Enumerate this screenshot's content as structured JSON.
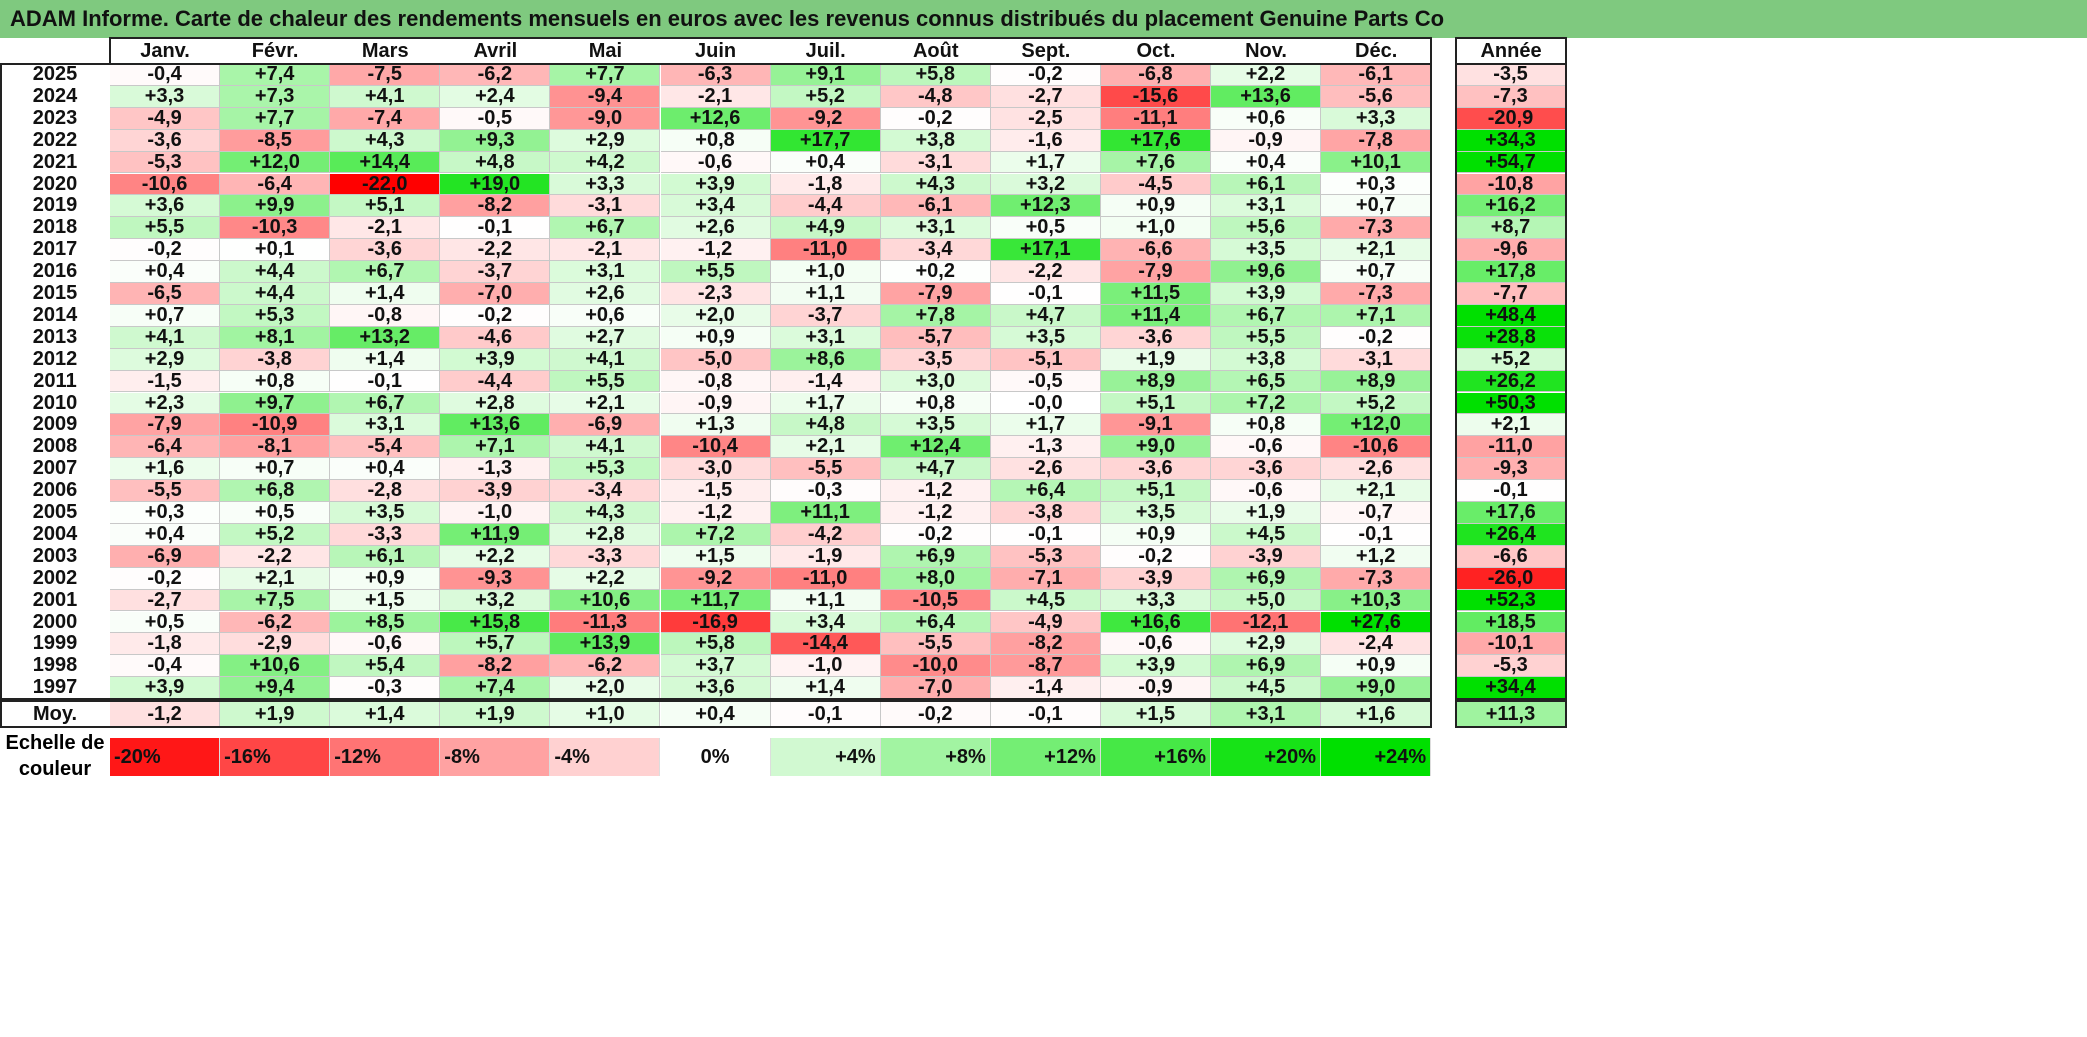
{
  "title": "ADAM Informe. Carte de chaleur des rendements mensuels en euros avec les revenus connus distribués du placement Genuine Parts Co",
  "chart_data": {
    "type": "heatmap",
    "title": "ADAM Informe. Carte de chaleur des rendements mensuels en euros avec les revenus connus distribués du placement Genuine Parts Co",
    "columns": [
      "Janv.",
      "Févr.",
      "Mars",
      "Avril",
      "Mai",
      "Juin",
      "Juil.",
      "Août",
      "Sept.",
      "Oct.",
      "Nov.",
      "Déc."
    ],
    "year_column_label": "Année",
    "rows": [
      {
        "year": "2025",
        "values": [
          "-0,4",
          "+7,4",
          "-7,5",
          "-6,2",
          "+7,7",
          "-6,3",
          "+9,1",
          "+5,8",
          "-0,2",
          "-6,8",
          "+2,2",
          "-6,1"
        ],
        "annual": "-3,5"
      },
      {
        "year": "2024",
        "values": [
          "+3,3",
          "+7,3",
          "+4,1",
          "+2,4",
          "-9,4",
          "-2,1",
          "+5,2",
          "-4,8",
          "-2,7",
          "-15,6",
          "+13,6",
          "-5,6"
        ],
        "annual": "-7,3"
      },
      {
        "year": "2023",
        "values": [
          "-4,9",
          "+7,7",
          "-7,4",
          "-0,5",
          "-9,0",
          "+12,6",
          "-9,2",
          "-0,2",
          "-2,5",
          "-11,1",
          "+0,6",
          "+3,3"
        ],
        "annual": "-20,9"
      },
      {
        "year": "2022",
        "values": [
          "-3,6",
          "-8,5",
          "+4,3",
          "+9,3",
          "+2,9",
          "+0,8",
          "+17,7",
          "+3,8",
          "-1,6",
          "+17,6",
          "-0,9",
          "-7,8"
        ],
        "annual": "+34,3"
      },
      {
        "year": "2021",
        "values": [
          "-5,3",
          "+12,0",
          "+14,4",
          "+4,8",
          "+4,2",
          "-0,6",
          "+0,4",
          "-3,1",
          "+1,7",
          "+7,6",
          "+0,4",
          "+10,1"
        ],
        "annual": "+54,7"
      },
      {
        "year": "2020",
        "values": [
          "-10,6",
          "-6,4",
          "-22,0",
          "+19,0",
          "+3,3",
          "+3,9",
          "-1,8",
          "+4,3",
          "+3,2",
          "-4,5",
          "+6,1",
          "+0,3"
        ],
        "annual": "-10,8"
      },
      {
        "year": "2019",
        "values": [
          "+3,6",
          "+9,9",
          "+5,1",
          "-8,2",
          "-3,1",
          "+3,4",
          "-4,4",
          "-6,1",
          "+12,3",
          "+0,9",
          "+3,1",
          "+0,7"
        ],
        "annual": "+16,2"
      },
      {
        "year": "2018",
        "values": [
          "+5,5",
          "-10,3",
          "-2,1",
          "-0,1",
          "+6,7",
          "+2,6",
          "+4,9",
          "+3,1",
          "+0,5",
          "+1,0",
          "+5,6",
          "-7,3"
        ],
        "annual": "+8,7"
      },
      {
        "year": "2017",
        "values": [
          "-0,2",
          "+0,1",
          "-3,6",
          "-2,2",
          "-2,1",
          "-1,2",
          "-11,0",
          "-3,4",
          "+17,1",
          "-6,6",
          "+3,5",
          "+2,1"
        ],
        "annual": "-9,6"
      },
      {
        "year": "2016",
        "values": [
          "+0,4",
          "+4,4",
          "+6,7",
          "-3,7",
          "+3,1",
          "+5,5",
          "+1,0",
          "+0,2",
          "-2,2",
          "-7,9",
          "+9,6",
          "+0,7"
        ],
        "annual": "+17,8"
      },
      {
        "year": "2015",
        "values": [
          "-6,5",
          "+4,4",
          "+1,4",
          "-7,0",
          "+2,6",
          "-2,3",
          "+1,1",
          "-7,9",
          "-0,1",
          "+11,5",
          "+3,9",
          "-7,3"
        ],
        "annual": "-7,7"
      },
      {
        "year": "2014",
        "values": [
          "+0,7",
          "+5,3",
          "-0,8",
          "-0,2",
          "+0,6",
          "+2,0",
          "-3,7",
          "+7,8",
          "+4,7",
          "+11,4",
          "+6,7",
          "+7,1"
        ],
        "annual": "+48,4"
      },
      {
        "year": "2013",
        "values": [
          "+4,1",
          "+8,1",
          "+13,2",
          "-4,6",
          "+2,7",
          "+0,9",
          "+3,1",
          "-5,7",
          "+3,5",
          "-3,6",
          "+5,5",
          "-0,2"
        ],
        "annual": "+28,8"
      },
      {
        "year": "2012",
        "values": [
          "+2,9",
          "-3,8",
          "+1,4",
          "+3,9",
          "+4,1",
          "-5,0",
          "+8,6",
          "-3,5",
          "-5,1",
          "+1,9",
          "+3,8",
          "-3,1"
        ],
        "annual": "+5,2"
      },
      {
        "year": "2011",
        "values": [
          "-1,5",
          "+0,8",
          "-0,1",
          "-4,4",
          "+5,5",
          "-0,8",
          "-1,4",
          "+3,0",
          "-0,5",
          "+8,9",
          "+6,5",
          "+8,9"
        ],
        "annual": "+26,2"
      },
      {
        "year": "2010",
        "values": [
          "+2,3",
          "+9,7",
          "+6,7",
          "+2,8",
          "+2,1",
          "-0,9",
          "+1,7",
          "+0,8",
          "-0,0",
          "+5,1",
          "+7,2",
          "+5,2"
        ],
        "annual": "+50,3"
      },
      {
        "year": "2009",
        "values": [
          "-7,9",
          "-10,9",
          "+3,1",
          "+13,6",
          "-6,9",
          "+1,3",
          "+4,8",
          "+3,5",
          "+1,7",
          "-9,1",
          "+0,8",
          "+12,0"
        ],
        "annual": "+2,1"
      },
      {
        "year": "2008",
        "values": [
          "-6,4",
          "-8,1",
          "-5,4",
          "+7,1",
          "+4,1",
          "-10,4",
          "+2,1",
          "+12,4",
          "-1,3",
          "+9,0",
          "-0,6",
          "-10,6"
        ],
        "annual": "-11,0"
      },
      {
        "year": "2007",
        "values": [
          "+1,6",
          "+0,7",
          "+0,4",
          "-1,3",
          "+5,3",
          "-3,0",
          "-5,5",
          "+4,7",
          "-2,6",
          "-3,6",
          "-3,6",
          "-2,6"
        ],
        "annual": "-9,3"
      },
      {
        "year": "2006",
        "values": [
          "-5,5",
          "+6,8",
          "-2,8",
          "-3,9",
          "-3,4",
          "-1,5",
          "-0,3",
          "-1,2",
          "+6,4",
          "+5,1",
          "-0,6",
          "+2,1"
        ],
        "annual": "-0,1"
      },
      {
        "year": "2005",
        "values": [
          "+0,3",
          "+0,5",
          "+3,5",
          "-1,0",
          "+4,3",
          "-1,2",
          "+11,1",
          "-1,2",
          "-3,8",
          "+3,5",
          "+1,9",
          "-0,7"
        ],
        "annual": "+17,6"
      },
      {
        "year": "2004",
        "values": [
          "+0,4",
          "+5,2",
          "-3,3",
          "+11,9",
          "+2,8",
          "+7,2",
          "-4,2",
          "-0,2",
          "-0,1",
          "+0,9",
          "+4,5",
          "-0,1"
        ],
        "annual": "+26,4"
      },
      {
        "year": "2003",
        "values": [
          "-6,9",
          "-2,2",
          "+6,1",
          "+2,2",
          "-3,3",
          "+1,5",
          "-1,9",
          "+6,9",
          "-5,3",
          "-0,2",
          "-3,9",
          "+1,2"
        ],
        "annual": "-6,6"
      },
      {
        "year": "2002",
        "values": [
          "-0,2",
          "+2,1",
          "+0,9",
          "-9,3",
          "+2,2",
          "-9,2",
          "-11,0",
          "+8,0",
          "-7,1",
          "-3,9",
          "+6,9",
          "-7,3"
        ],
        "annual": "-26,0"
      },
      {
        "year": "2001",
        "values": [
          "-2,7",
          "+7,5",
          "+1,5",
          "+3,2",
          "+10,6",
          "+11,7",
          "+1,1",
          "-10,5",
          "+4,5",
          "+3,3",
          "+5,0",
          "+10,3"
        ],
        "annual": "+52,3"
      },
      {
        "year": "2000",
        "values": [
          "+0,5",
          "-6,2",
          "+8,5",
          "+15,8",
          "-11,3",
          "-16,9",
          "+3,4",
          "+6,4",
          "-4,9",
          "+16,6",
          "-12,1",
          "+27,6"
        ],
        "annual": "+18,5"
      },
      {
        "year": "1999",
        "values": [
          "-1,8",
          "-2,9",
          "-0,6",
          "+5,7",
          "+13,9",
          "+5,8",
          "-14,4",
          "-5,5",
          "-8,2",
          "-0,6",
          "+2,9",
          "-2,4"
        ],
        "annual": "-10,1"
      },
      {
        "year": "1998",
        "values": [
          "-0,4",
          "+10,6",
          "+5,4",
          "-8,2",
          "-6,2",
          "+3,7",
          "-1,0",
          "-10,0",
          "-8,7",
          "+3,9",
          "+6,9",
          "+0,9"
        ],
        "annual": "-5,3"
      },
      {
        "year": "1997",
        "values": [
          "+3,9",
          "+9,4",
          "-0,3",
          "+7,4",
          "+2,0",
          "+3,6",
          "+1,4",
          "-7,0",
          "-1,4",
          "-0,9",
          "+4,5",
          "+9,0"
        ],
        "annual": "+34,4"
      }
    ],
    "average": {
      "label": "Moy.",
      "values": [
        "-1,2",
        "+1,9",
        "+1,4",
        "+1,9",
        "+1,0",
        "+0,4",
        "-0,1",
        "-0,2",
        "-0,1",
        "+1,5",
        "+3,1",
        "+1,6"
      ],
      "annual": "+11,3"
    },
    "scale": {
      "label_line1": "Echelle de",
      "label_line2": "couleur",
      "steps": [
        "-20%",
        "-16%",
        "-12%",
        "-8%",
        "-4%",
        "0%",
        "+4%",
        "+8%",
        "+12%",
        "+16%",
        "+20%",
        "+24%"
      ]
    },
    "colors": {
      "negative": "#ff0000",
      "neutral": "#ffffff",
      "positive": "#00e000"
    }
  }
}
